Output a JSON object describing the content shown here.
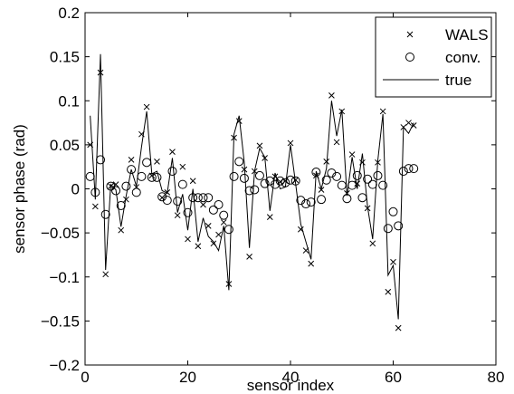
{
  "chart_data": {
    "type": "scatter",
    "xlabel": "sensor index",
    "ylabel": "sensor phase (rad)",
    "xlim": [
      0,
      80
    ],
    "ylim": [
      -0.2,
      0.2
    ],
    "xticks": [
      0,
      20,
      40,
      60,
      80
    ],
    "xtick_labels": [
      "0",
      "20",
      "40",
      "60",
      "80"
    ],
    "yticks": [
      -0.2,
      -0.15,
      -0.1,
      -0.05,
      0,
      0.05,
      0.1,
      0.15,
      0.2
    ],
    "ytick_labels": [
      "−0.2",
      "−0.15",
      "−0.1",
      "−0.05",
      "0",
      "0.05",
      "0.1",
      "0.15",
      "0.2"
    ],
    "grid": false,
    "legend_position": "top-right",
    "series": [
      {
        "name": "WALS",
        "marker": "x",
        "x": [
          1,
          2,
          3,
          4,
          5,
          6,
          7,
          8,
          9,
          10,
          11,
          12,
          13,
          14,
          15,
          16,
          17,
          18,
          19,
          20,
          21,
          22,
          23,
          24,
          25,
          26,
          27,
          28,
          29,
          30,
          31,
          32,
          33,
          34,
          35,
          36,
          37,
          38,
          39,
          40,
          41,
          42,
          43,
          44,
          45,
          46,
          47,
          48,
          49,
          50,
          51,
          52,
          53,
          54,
          55,
          56,
          57,
          58,
          59,
          60,
          61,
          62,
          63,
          64
        ],
        "y": [
          0.05,
          -0.02,
          0.132,
          -0.097,
          0.003,
          0.005,
          -0.047,
          -0.012,
          0.033,
          0.002,
          0.062,
          0.093,
          0.015,
          0.031,
          -0.01,
          -0.004,
          0.042,
          -0.03,
          0.025,
          -0.057,
          0.009,
          -0.065,
          -0.018,
          -0.042,
          -0.062,
          -0.052,
          -0.038,
          -0.108,
          0.058,
          0.077,
          0.022,
          -0.077,
          0.02,
          0.049,
          0.035,
          -0.032,
          0.014,
          0.008,
          0.009,
          0.052,
          0.01,
          -0.046,
          -0.07,
          -0.085,
          0.015,
          -0.001,
          0.031,
          0.106,
          0.053,
          0.088,
          -0.005,
          0.039,
          0.006,
          0.03,
          -0.022,
          -0.062,
          0.03,
          0.088,
          -0.117,
          -0.083,
          -0.158,
          0.07,
          0.075,
          0.072
        ]
      },
      {
        "name": "conv.",
        "marker": "o",
        "x": [
          1,
          2,
          3,
          4,
          5,
          6,
          7,
          8,
          9,
          10,
          11,
          12,
          13,
          14,
          15,
          16,
          17,
          18,
          19,
          20,
          21,
          22,
          23,
          24,
          25,
          26,
          27,
          28,
          29,
          30,
          31,
          32,
          33,
          34,
          35,
          36,
          37,
          38,
          39,
          40,
          41,
          42,
          43,
          44,
          45,
          46,
          47,
          48,
          49,
          50,
          51,
          52,
          53,
          54,
          55,
          56,
          57,
          58,
          59,
          60,
          61,
          62,
          63,
          64
        ],
        "y": [
          0.014,
          -0.004,
          0.033,
          -0.029,
          0.003,
          -0.002,
          -0.019,
          0.003,
          0.022,
          -0.004,
          0.014,
          0.03,
          0.013,
          0.013,
          -0.009,
          -0.013,
          0.02,
          -0.014,
          0.005,
          -0.027,
          -0.01,
          -0.01,
          -0.01,
          -0.01,
          -0.024,
          -0.018,
          -0.03,
          -0.046,
          0.014,
          0.031,
          0.012,
          -0.002,
          -0.001,
          0.015,
          0.006,
          0.009,
          0.005,
          0.009,
          0.007,
          0.01,
          0.009,
          -0.013,
          -0.017,
          -0.015,
          0.019,
          -0.012,
          0.01,
          0.018,
          0.014,
          0.004,
          -0.011,
          0.004,
          0.015,
          -0.01,
          0.011,
          0.005,
          0.015,
          0.004,
          -0.045,
          -0.026,
          -0.042,
          0.02,
          0.023,
          0.023
        ]
      },
      {
        "name": "true",
        "marker": "line",
        "x": [
          1,
          2,
          3,
          4,
          5,
          6,
          7,
          8,
          9,
          10,
          11,
          12,
          13,
          14,
          15,
          16,
          17,
          18,
          19,
          20,
          21,
          22,
          23,
          24,
          25,
          26,
          27,
          28,
          29,
          30,
          31,
          32,
          33,
          34,
          35,
          36,
          37,
          38,
          39,
          40,
          41,
          42,
          43,
          44,
          45,
          46,
          47,
          48,
          49,
          50,
          51,
          52,
          53,
          54,
          55,
          56,
          57,
          58,
          59,
          60,
          61,
          62,
          63,
          64
        ],
        "y": [
          0.083,
          -0.012,
          0.153,
          -0.092,
          0.005,
          -0.001,
          -0.043,
          -0.008,
          0.022,
          0.003,
          0.048,
          0.088,
          0.017,
          0.02,
          -0.002,
          -0.005,
          0.035,
          -0.027,
          -0.006,
          -0.047,
          0.0,
          -0.06,
          -0.033,
          -0.054,
          -0.06,
          -0.07,
          -0.042,
          -0.115,
          0.062,
          0.083,
          0.03,
          -0.067,
          0.02,
          0.046,
          0.036,
          -0.025,
          0.018,
          0.0,
          0.002,
          0.05,
          0.006,
          -0.04,
          -0.06,
          -0.08,
          0.02,
          0.0,
          0.023,
          0.1,
          0.06,
          0.09,
          -0.008,
          0.036,
          0.0,
          0.04,
          -0.02,
          -0.057,
          0.032,
          0.085,
          -0.098,
          -0.087,
          -0.148,
          0.07,
          0.063,
          0.075
        ]
      }
    ]
  }
}
